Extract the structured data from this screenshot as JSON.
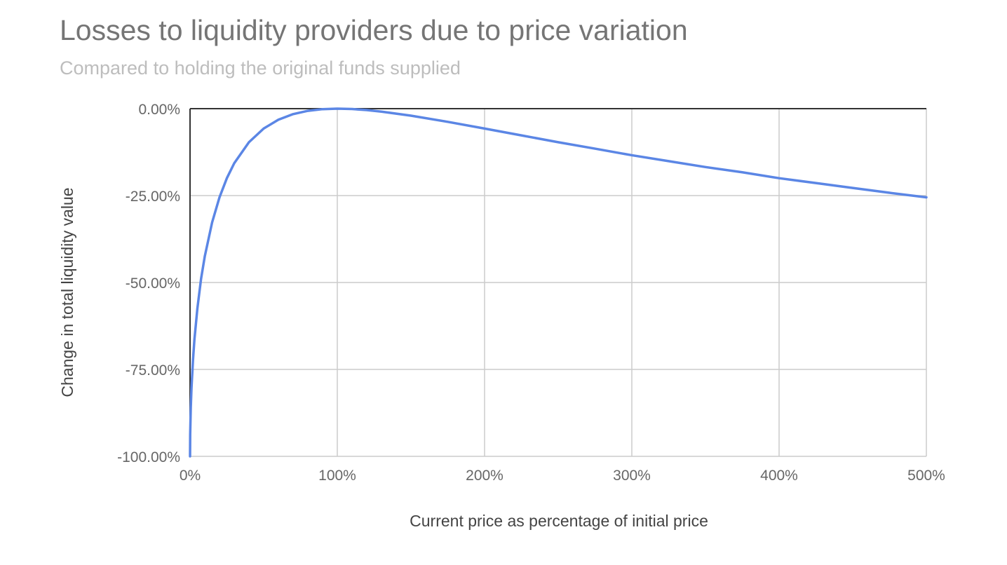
{
  "chart_data": {
    "type": "line",
    "title": "Losses to liquidity providers due to price variation",
    "subtitle": "Compared to holding the original funds supplied",
    "xlabel": "Current price as percentage of initial price",
    "ylabel": "Change in total liquidity value",
    "xlim": [
      0,
      500
    ],
    "ylim": [
      -100,
      0
    ],
    "x_ticks": [
      0,
      100,
      200,
      300,
      400,
      500
    ],
    "x_tick_labels": [
      "0%",
      "100%",
      "200%",
      "300%",
      "400%",
      "500%"
    ],
    "y_ticks": [
      0,
      -25,
      -50,
      -75,
      -100
    ],
    "y_tick_labels": [
      "0.00%",
      "-25.00%",
      "-50.00%",
      "-75.00%",
      "-100.00%"
    ],
    "grid": true,
    "legend": "none",
    "series": [
      {
        "color": "#5b86e5",
        "x": [
          0,
          0.1,
          0.5,
          1,
          2,
          3,
          5,
          7.5,
          10,
          15,
          20,
          25,
          30,
          40,
          50,
          60,
          70,
          80,
          90,
          100,
          110,
          120,
          130,
          150,
          175,
          200,
          225,
          250,
          275,
          300,
          325,
          350,
          375,
          400,
          425,
          450,
          475,
          500
        ],
        "y": [
          -100,
          -93.7,
          -86.0,
          -80.2,
          -72.3,
          -66.3,
          -57.4,
          -48.9,
          -42.5,
          -32.7,
          -25.5,
          -20.0,
          -15.7,
          -9.65,
          -5.72,
          -3.18,
          -1.57,
          -0.62,
          -0.14,
          0,
          -0.11,
          -0.41,
          -0.86,
          -2.02,
          -3.79,
          -5.72,
          -7.69,
          -9.65,
          -11.5,
          -13.4,
          -15.1,
          -16.8,
          -18.3,
          -20.0,
          -21.4,
          -22.8,
          -24.2,
          -25.5
        ]
      }
    ]
  }
}
